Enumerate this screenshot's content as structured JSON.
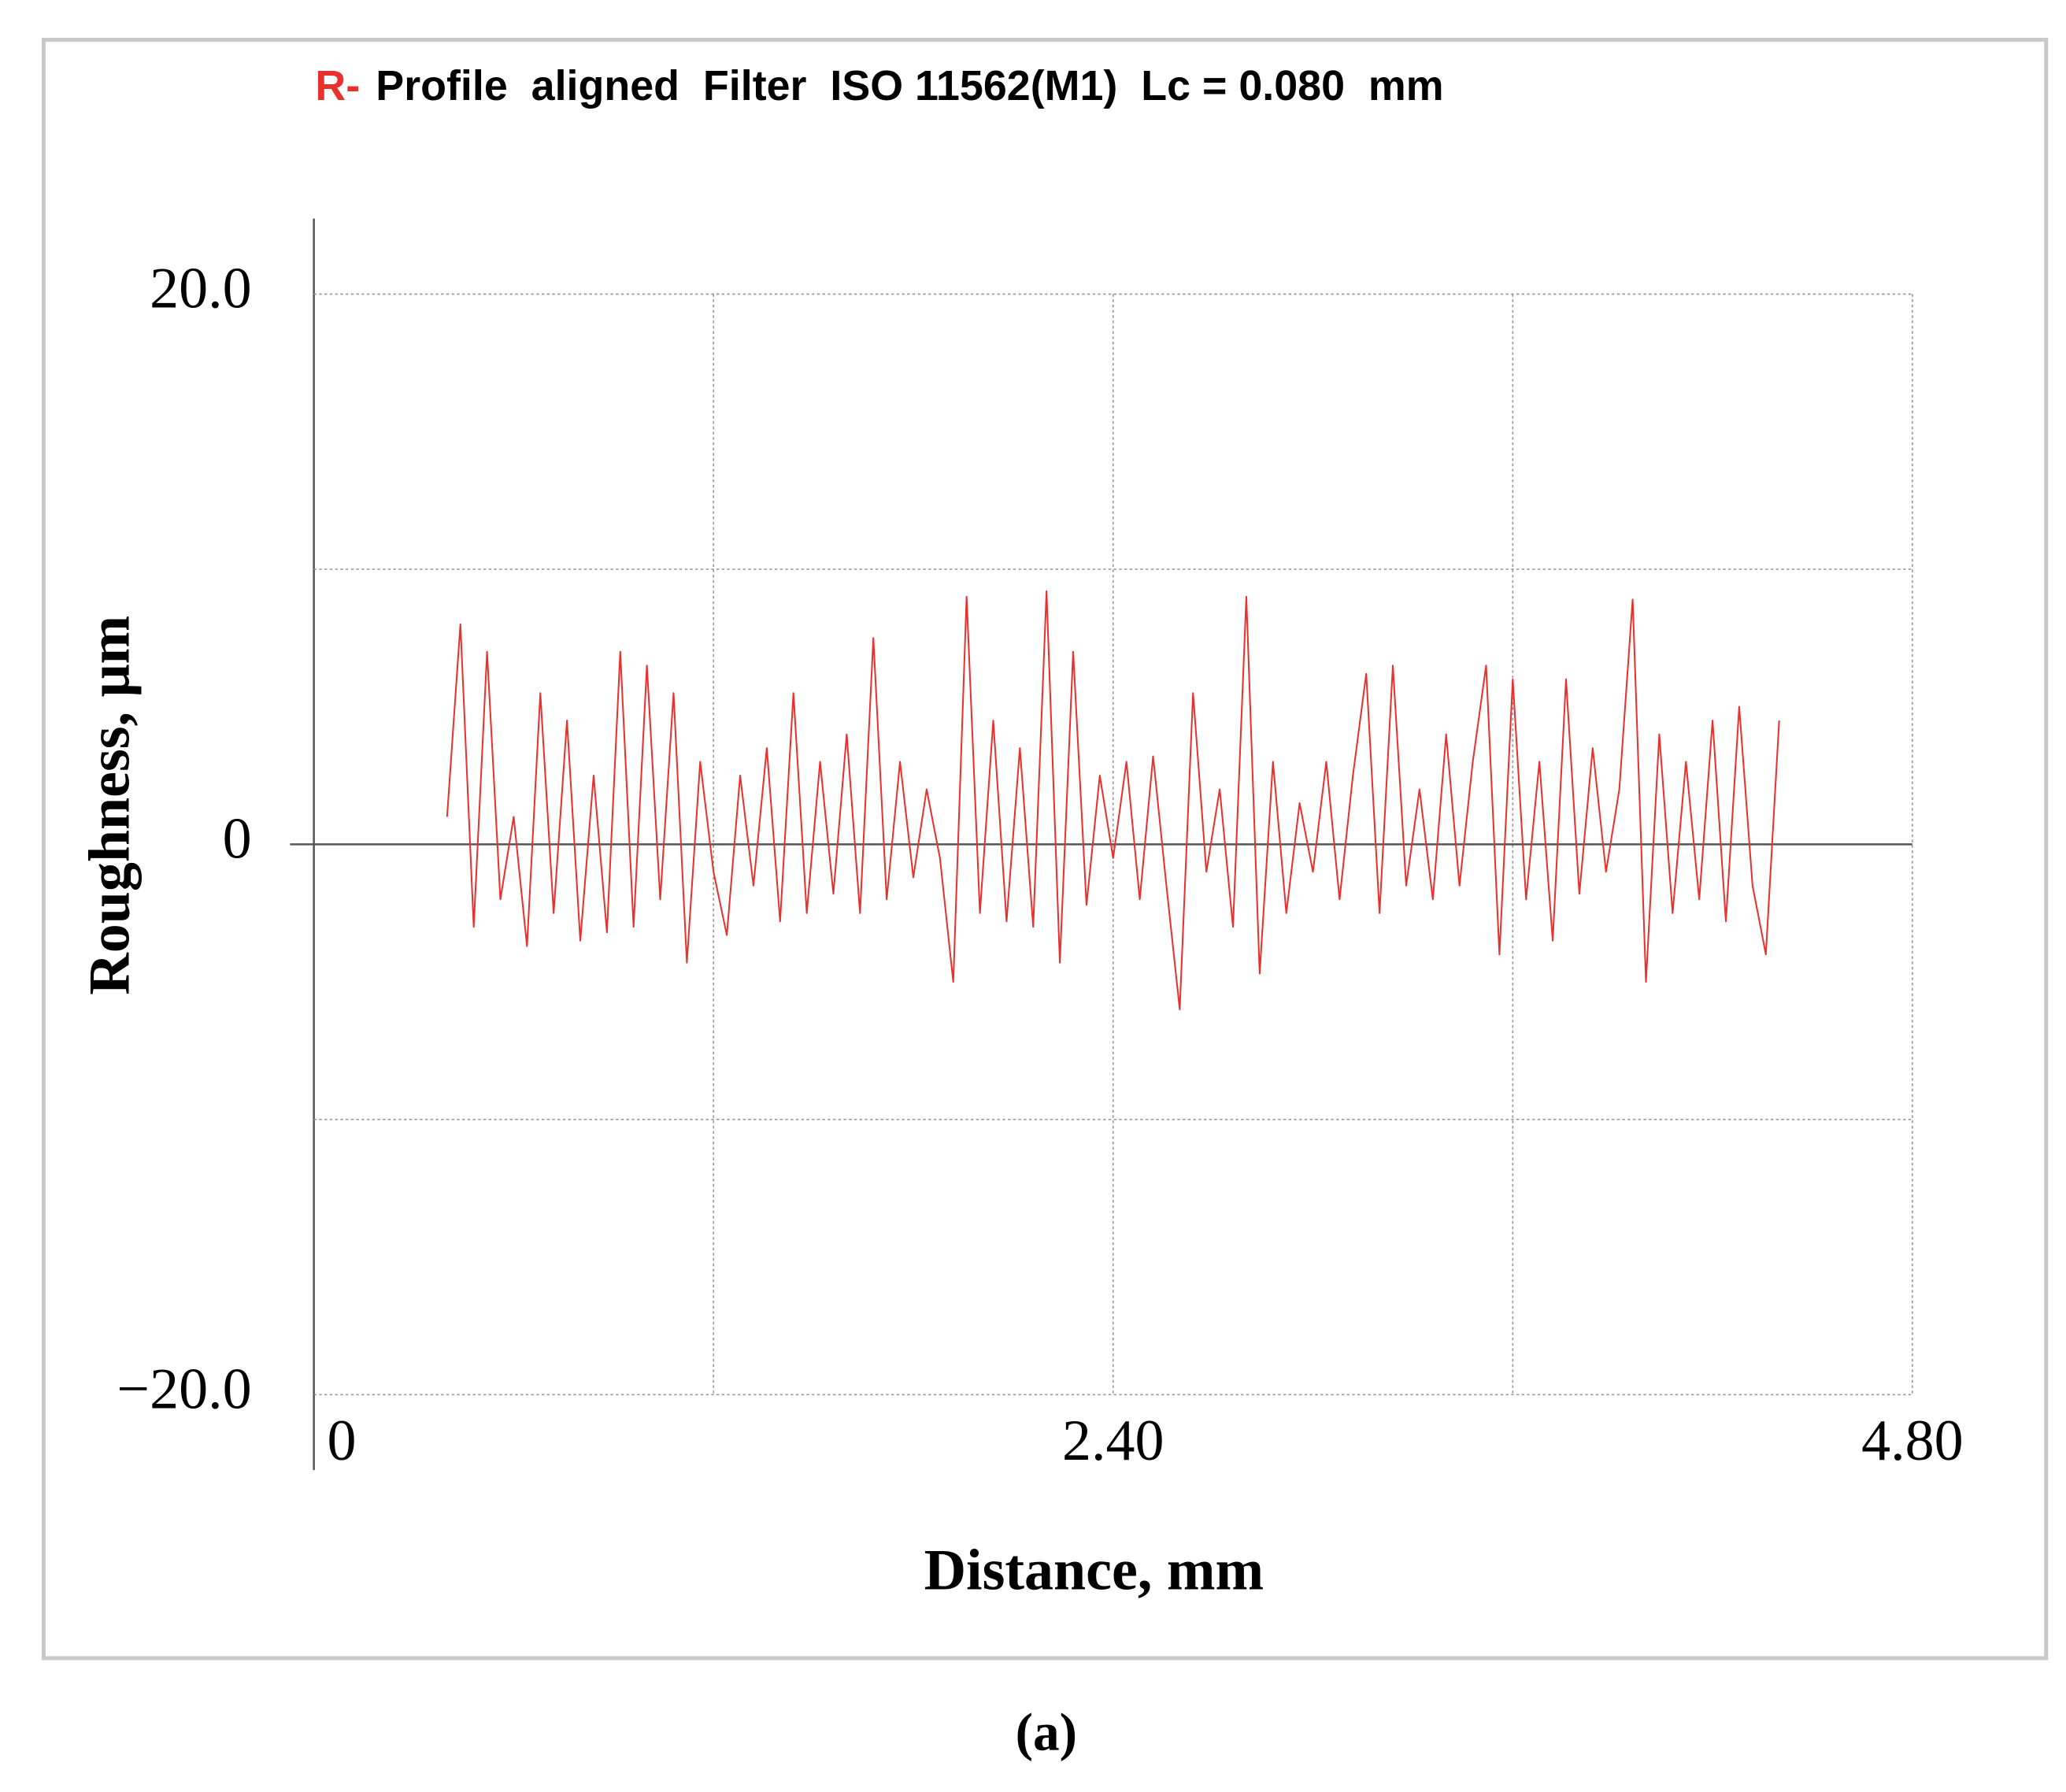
{
  "chart_data": {
    "type": "line",
    "title_prefix": "R-",
    "title": "Profile  aligned  Filter  ISO 11562(M1)  Lc = 0.080  mm",
    "x_label": "Distance, mm",
    "y_label": "Roughness, μm",
    "caption": "(a)",
    "xlim": [
      0,
      4.8
    ],
    "ylim": [
      -20,
      20
    ],
    "xticks": [
      0,
      {
        "value": 2.4,
        "label": "2.40"
      },
      {
        "value": 4.8,
        "label": "4.80"
      }
    ],
    "yticks": [
      {
        "value": 20,
        "label": "20.0"
      },
      0,
      {
        "value": -20,
        "label": "−20.0"
      }
    ],
    "xgrid": [
      1.2,
      3.6
    ],
    "ygrid": [
      10,
      -10
    ],
    "grid": true,
    "x": [
      0.4,
      0.44,
      0.48,
      0.52,
      0.56,
      0.6,
      0.64,
      0.68,
      0.72,
      0.76,
      0.8,
      0.84,
      0.88,
      0.92,
      0.96,
      1.0,
      1.04,
      1.08,
      1.12,
      1.16,
      1.2,
      1.24,
      1.28,
      1.32,
      1.36,
      1.4,
      1.44,
      1.48,
      1.52,
      1.56,
      1.6,
      1.64,
      1.68,
      1.72,
      1.76,
      1.8,
      1.84,
      1.88,
      1.92,
      1.96,
      2.0,
      2.04,
      2.08,
      2.12,
      2.16,
      2.2,
      2.24,
      2.28,
      2.32,
      2.36,
      2.4,
      2.44,
      2.48,
      2.52,
      2.56,
      2.6,
      2.64,
      2.68,
      2.72,
      2.76,
      2.8,
      2.84,
      2.88,
      2.92,
      2.96,
      3.0,
      3.04,
      3.08,
      3.12,
      3.16,
      3.2,
      3.24,
      3.28,
      3.32,
      3.36,
      3.4,
      3.44,
      3.48,
      3.52,
      3.56,
      3.6,
      3.64,
      3.68,
      3.72,
      3.76,
      3.8,
      3.84,
      3.88,
      3.92,
      3.96,
      4.0,
      4.04,
      4.08,
      4.12,
      4.16,
      4.2,
      4.24,
      4.28,
      4.32,
      4.36,
      4.4
    ],
    "series": [
      {
        "color": "#e8302c",
        "values": [
          1.0,
          8.0,
          -3.0,
          7.0,
          -2.0,
          1.0,
          -3.7,
          5.5,
          -2.5,
          4.5,
          -3.5,
          2.5,
          -3.2,
          7.0,
          -3.0,
          6.5,
          -2.0,
          5.5,
          -4.3,
          3.0,
          -1.0,
          -3.3,
          2.5,
          -1.5,
          3.5,
          -2.8,
          5.5,
          -2.5,
          3.0,
          -1.8,
          4.0,
          -2.5,
          7.5,
          -2.0,
          3.0,
          -1.2,
          2.0,
          -0.5,
          -5.0,
          9.0,
          -2.5,
          4.5,
          -2.8,
          3.5,
          -3.0,
          9.2,
          -4.3,
          7.0,
          -2.2,
          2.5,
          -0.5,
          3.0,
          -2.0,
          3.2,
          -1.5,
          -6.0,
          5.5,
          -1.0,
          2.0,
          -3.0,
          9.0,
          -4.7,
          3.0,
          -2.5,
          1.5,
          -1.0,
          3.0,
          -2.0,
          2.5,
          6.2,
          -2.5,
          6.5,
          -1.5,
          2.0,
          -2.0,
          4.0,
          -1.5,
          3.0,
          6.5,
          -4.0,
          6.0,
          -2.0,
          3.0,
          -3.5,
          6.0,
          -1.8,
          3.5,
          -1.0,
          2.0,
          8.9,
          -5.0,
          4.0,
          -2.5,
          3.0,
          -2.0,
          4.5,
          -2.8,
          5.0,
          -1.5,
          -4.0,
          4.5
        ]
      }
    ]
  }
}
